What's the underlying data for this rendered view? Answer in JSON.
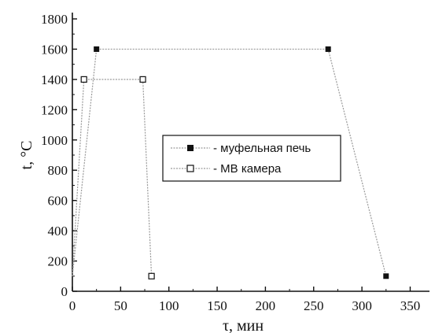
{
  "chart_data": {
    "type": "line",
    "title": "",
    "xlabel": "τ, мин",
    "ylabel": "t, °C",
    "xlim": [
      0,
      370
    ],
    "ylim": [
      0,
      1800
    ],
    "xticks": [
      0,
      50,
      100,
      150,
      200,
      250,
      300,
      350
    ],
    "yticks": [
      0,
      200,
      400,
      600,
      800,
      1000,
      1200,
      1400,
      1600,
      1800
    ],
    "grid": false,
    "legend_position": "center-right",
    "series": [
      {
        "name": "- муфельная печь",
        "marker": "filled-square",
        "color": "#111111",
        "line_color": "#9a9a9a",
        "x": [
          0,
          25,
          265,
          325
        ],
        "y": [
          100,
          1600,
          1600,
          100
        ]
      },
      {
        "name": "- МВ камера",
        "marker": "open-square",
        "color": "#111111",
        "line_color": "#9a9a9a",
        "x": [
          0,
          12,
          73,
          82
        ],
        "y": [
          100,
          1400,
          1400,
          100
        ]
      }
    ]
  }
}
